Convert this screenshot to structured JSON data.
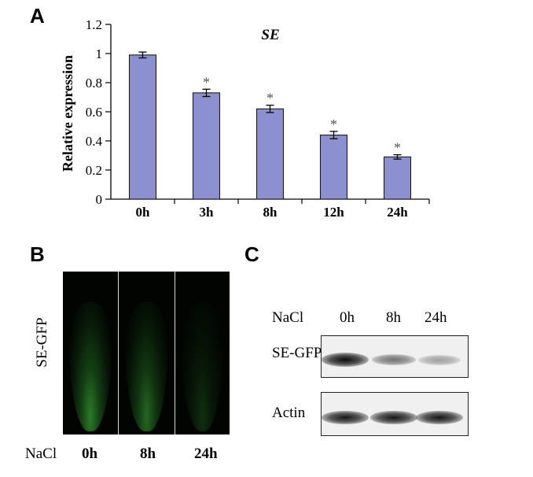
{
  "panels": {
    "a": {
      "letter": "A"
    },
    "b": {
      "letter": "B"
    },
    "c": {
      "letter": "C"
    }
  },
  "chart_data": {
    "type": "bar",
    "title": "SE",
    "title_style": "italic",
    "xlabel": "",
    "ylabel": "Relative expression",
    "ylim": [
      0,
      1.2
    ],
    "yticks": [
      0,
      0.2,
      0.4,
      0.6,
      0.8,
      1,
      1.2
    ],
    "ytick_labels": [
      "0",
      "0.2",
      "0.4",
      "0.6",
      "0.8",
      "1",
      "1.2"
    ],
    "categories": [
      "0h",
      "3h",
      "8h",
      "12h",
      "24h"
    ],
    "values": [
      0.99,
      0.73,
      0.62,
      0.44,
      0.29
    ],
    "errors": [
      0.02,
      0.025,
      0.025,
      0.025,
      0.015
    ],
    "significance": [
      "",
      "*",
      "*",
      "*",
      "*"
    ],
    "bar_color": "#8c8fd0",
    "bar_edge_color": "#1a1a1a",
    "grid": false
  },
  "panel_b": {
    "row_label": "SE-GFP",
    "condition_label": "NaCl",
    "timepoints": [
      "0h",
      "8h",
      "24h"
    ],
    "gfp_intensity": [
      0.85,
      0.7,
      0.3
    ],
    "gfp_color": "#2f8f2a"
  },
  "panel_c": {
    "condition_label": "NaCl",
    "timepoints": [
      "0h",
      "8h",
      "24h"
    ],
    "blots": [
      {
        "label": "SE-GFP",
        "band_intensity": [
          1.0,
          0.55,
          0.35
        ]
      },
      {
        "label": "Actin",
        "band_intensity": [
          0.95,
          0.95,
          0.95
        ]
      }
    ]
  }
}
